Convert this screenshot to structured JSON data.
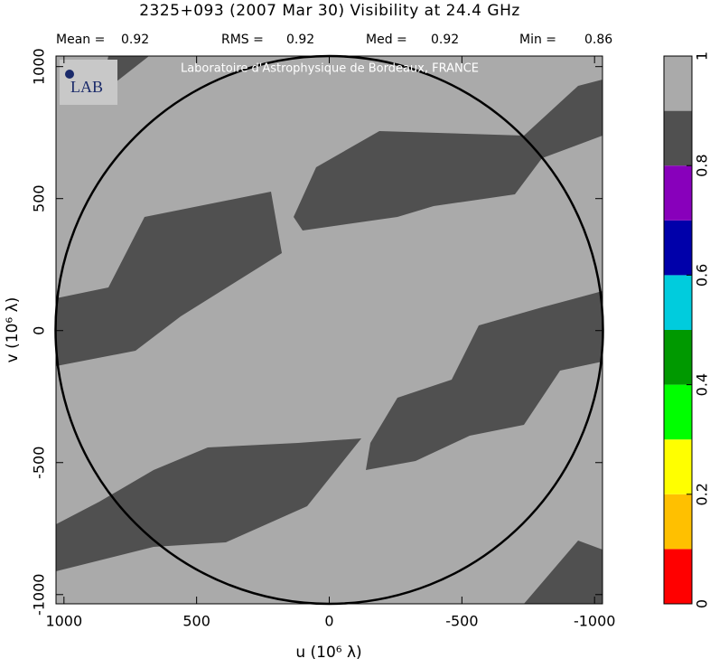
{
  "chart_data": {
    "type": "heatmap",
    "title": "2325+093  (2007 Mar 30)   Visibility at 24.4 GHz",
    "stats": [
      {
        "label": "Mean =",
        "value": 0.92
      },
      {
        "label": "RMS =",
        "value": 0.92
      },
      {
        "label": "Med =",
        "value": 0.92
      },
      {
        "label": "Min =",
        "value": 0.86
      }
    ],
    "watermark": "Laboratoire d'Astrophysique de Bordeaux, FRANCE",
    "logo": "LAB",
    "x_label": "u  (10⁶ λ)",
    "y_label": "v  (10⁶ λ)",
    "xlim": [
      1030,
      -1030
    ],
    "xticks": [
      1000,
      500,
      0,
      -500,
      -1000
    ],
    "ylim": [
      -1035,
      1040
    ],
    "yticks": [
      -1000,
      -500,
      0,
      500,
      1000
    ],
    "colorbar": {
      "lim": [
        0,
        1
      ],
      "ticks": [
        0,
        0.2,
        0.4,
        0.6,
        0.8,
        1
      ],
      "colors": [
        "#ff0000",
        "#ffc000",
        "#ffff00",
        "#00ff00",
        "#009900",
        "#00ccdd",
        "#0000aa",
        "#8800bb",
        "#505050",
        "#aaaaaa"
      ]
    }
  }
}
